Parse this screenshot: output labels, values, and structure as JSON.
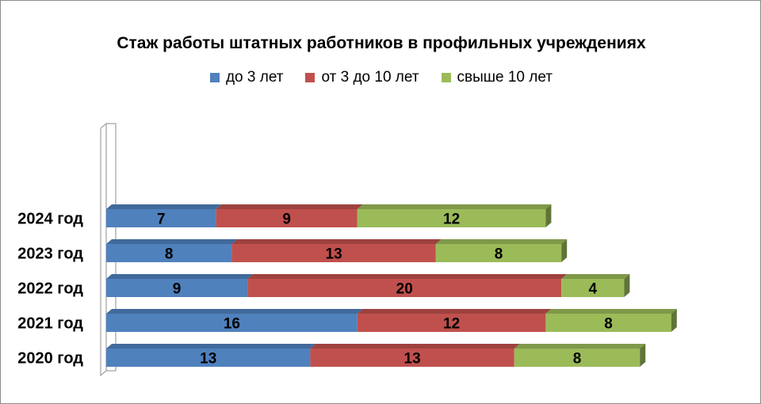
{
  "chart_data": {
    "type": "bar",
    "orientation": "horizontal",
    "stacked": true,
    "title": "Стаж работы  штатных работников  в профильных учреждениях",
    "categories": [
      "2020 год",
      "2021 год",
      "2022 год",
      "2023 год",
      "2024 год"
    ],
    "series": [
      {
        "name": "до  3 лет",
        "color": "#4f81bd",
        "values": [
          13,
          16,
          9,
          8,
          7
        ]
      },
      {
        "name": "от 3 до 10 лет",
        "color": "#c0504d",
        "values": [
          13,
          12,
          20,
          13,
          9
        ]
      },
      {
        "name": "свыше 10 лет",
        "color": "#9bbb59",
        "values": [
          8,
          8,
          4,
          8,
          12
        ]
      }
    ],
    "legend_position": "top",
    "data_labels": true,
    "grid": false,
    "effect": "3d"
  }
}
